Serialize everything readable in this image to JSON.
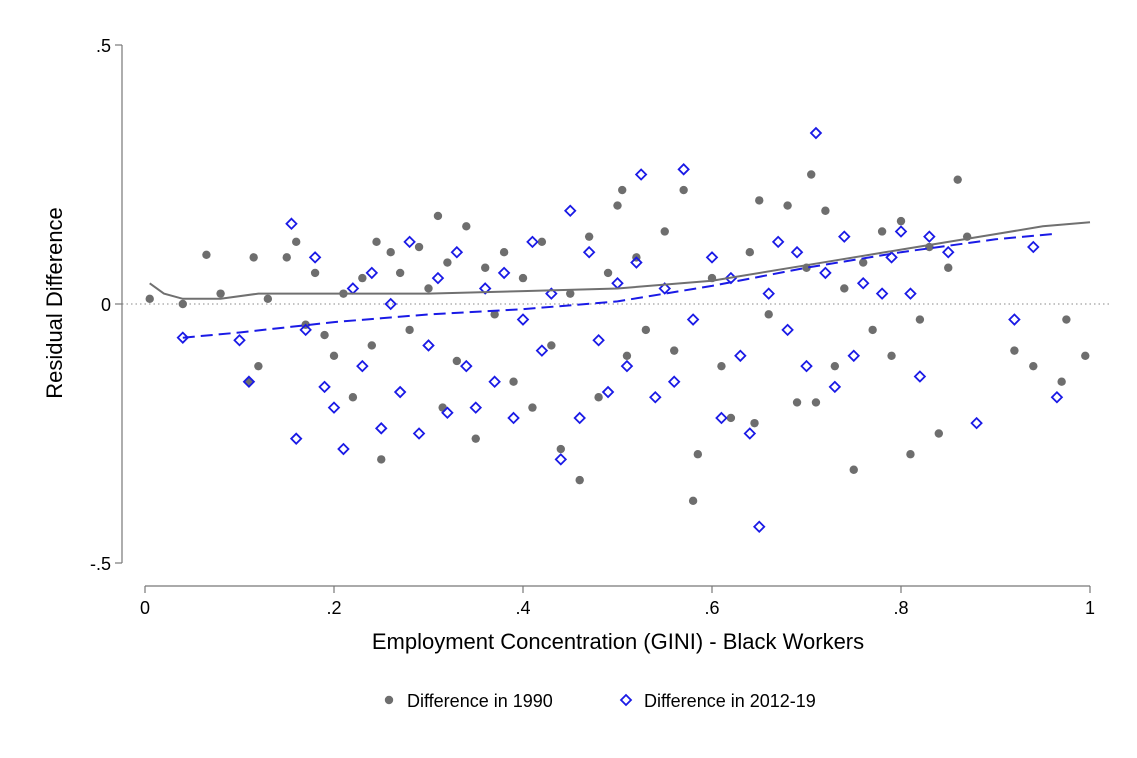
{
  "chart_data": {
    "type": "scatter",
    "xlabel": "Employment Concentration (GINI) - Black Workers",
    "ylabel": "Residual Difference",
    "xlim": [
      0,
      1
    ],
    "ylim": [
      -0.5,
      0.5
    ],
    "x_ticks": [
      {
        "value": 0,
        "label": "0"
      },
      {
        "value": 0.2,
        "label": ".2"
      },
      {
        "value": 0.4,
        "label": ".4"
      },
      {
        "value": 0.6,
        "label": ".6"
      },
      {
        "value": 0.8,
        "label": ".8"
      },
      {
        "value": 1,
        "label": "1"
      }
    ],
    "y_ticks": [
      {
        "value": 0.5,
        "label": ".5"
      },
      {
        "value": 0,
        "label": "0"
      },
      {
        "value": -0.5,
        "label": "-.5"
      }
    ],
    "reference_line": {
      "y": 0,
      "style": "dotted"
    },
    "grid": false,
    "legend_position": "bottom",
    "series": [
      {
        "name": "Difference in 1990",
        "marker": "filled-circle",
        "color": "#6e6e6e",
        "points": [
          [
            0.005,
            0.01
          ],
          [
            0.04,
            0.0
          ],
          [
            0.065,
            0.095
          ],
          [
            0.08,
            0.02
          ],
          [
            0.11,
            -0.15
          ],
          [
            0.115,
            0.09
          ],
          [
            0.12,
            -0.12
          ],
          [
            0.13,
            0.01
          ],
          [
            0.15,
            0.09
          ],
          [
            0.16,
            0.12
          ],
          [
            0.17,
            -0.04
          ],
          [
            0.18,
            0.06
          ],
          [
            0.19,
            -0.06
          ],
          [
            0.2,
            -0.1
          ],
          [
            0.21,
            0.02
          ],
          [
            0.22,
            -0.18
          ],
          [
            0.23,
            0.05
          ],
          [
            0.24,
            -0.08
          ],
          [
            0.245,
            0.12
          ],
          [
            0.25,
            -0.3
          ],
          [
            0.26,
            0.1
          ],
          [
            0.27,
            0.06
          ],
          [
            0.28,
            -0.05
          ],
          [
            0.29,
            0.11
          ],
          [
            0.3,
            0.03
          ],
          [
            0.31,
            0.17
          ],
          [
            0.315,
            -0.2
          ],
          [
            0.32,
            0.08
          ],
          [
            0.33,
            -0.11
          ],
          [
            0.34,
            0.15
          ],
          [
            0.35,
            -0.26
          ],
          [
            0.36,
            0.07
          ],
          [
            0.37,
            -0.02
          ],
          [
            0.38,
            0.1
          ],
          [
            0.39,
            -0.15
          ],
          [
            0.4,
            0.05
          ],
          [
            0.41,
            -0.2
          ],
          [
            0.42,
            0.12
          ],
          [
            0.43,
            -0.08
          ],
          [
            0.44,
            -0.28
          ],
          [
            0.45,
            0.02
          ],
          [
            0.46,
            -0.34
          ],
          [
            0.47,
            0.13
          ],
          [
            0.48,
            -0.18
          ],
          [
            0.49,
            0.06
          ],
          [
            0.5,
            0.19
          ],
          [
            0.505,
            0.22
          ],
          [
            0.51,
            -0.1
          ],
          [
            0.52,
            0.09
          ],
          [
            0.53,
            -0.05
          ],
          [
            0.55,
            0.14
          ],
          [
            0.56,
            -0.09
          ],
          [
            0.57,
            0.22
          ],
          [
            0.58,
            -0.38
          ],
          [
            0.585,
            -0.29
          ],
          [
            0.6,
            0.05
          ],
          [
            0.61,
            -0.12
          ],
          [
            0.62,
            -0.22
          ],
          [
            0.64,
            0.1
          ],
          [
            0.645,
            -0.23
          ],
          [
            0.65,
            0.2
          ],
          [
            0.66,
            -0.02
          ],
          [
            0.68,
            0.19
          ],
          [
            0.69,
            -0.19
          ],
          [
            0.7,
            0.07
          ],
          [
            0.705,
            0.25
          ],
          [
            0.71,
            -0.19
          ],
          [
            0.72,
            0.18
          ],
          [
            0.73,
            -0.12
          ],
          [
            0.74,
            0.03
          ],
          [
            0.75,
            -0.32
          ],
          [
            0.76,
            0.08
          ],
          [
            0.77,
            -0.05
          ],
          [
            0.78,
            0.14
          ],
          [
            0.79,
            -0.1
          ],
          [
            0.8,
            0.16
          ],
          [
            0.81,
            -0.29
          ],
          [
            0.82,
            -0.03
          ],
          [
            0.83,
            0.11
          ],
          [
            0.84,
            -0.25
          ],
          [
            0.85,
            0.07
          ],
          [
            0.86,
            0.24
          ],
          [
            0.87,
            0.13
          ],
          [
            0.92,
            -0.09
          ],
          [
            0.94,
            -0.12
          ],
          [
            0.97,
            -0.15
          ],
          [
            0.975,
            -0.03
          ],
          [
            0.995,
            -0.1
          ]
        ]
      },
      {
        "name": "Difference in 2012-19",
        "marker": "hollow-diamond",
        "color": "#1a1ae6",
        "points": [
          [
            0.04,
            -0.065
          ],
          [
            0.1,
            -0.07
          ],
          [
            0.11,
            -0.15
          ],
          [
            0.155,
            0.155
          ],
          [
            0.16,
            -0.26
          ],
          [
            0.17,
            -0.05
          ],
          [
            0.18,
            0.09
          ],
          [
            0.19,
            -0.16
          ],
          [
            0.2,
            -0.2
          ],
          [
            0.21,
            -0.28
          ],
          [
            0.22,
            0.03
          ],
          [
            0.23,
            -0.12
          ],
          [
            0.24,
            0.06
          ],
          [
            0.25,
            -0.24
          ],
          [
            0.26,
            0.0
          ],
          [
            0.27,
            -0.17
          ],
          [
            0.28,
            0.12
          ],
          [
            0.29,
            -0.25
          ],
          [
            0.3,
            -0.08
          ],
          [
            0.31,
            0.05
          ],
          [
            0.32,
            -0.21
          ],
          [
            0.33,
            0.1
          ],
          [
            0.34,
            -0.12
          ],
          [
            0.35,
            -0.2
          ],
          [
            0.36,
            0.03
          ],
          [
            0.37,
            -0.15
          ],
          [
            0.38,
            0.06
          ],
          [
            0.39,
            -0.22
          ],
          [
            0.4,
            -0.03
          ],
          [
            0.41,
            0.12
          ],
          [
            0.42,
            -0.09
          ],
          [
            0.43,
            0.02
          ],
          [
            0.44,
            -0.3
          ],
          [
            0.45,
            0.18
          ],
          [
            0.46,
            -0.22
          ],
          [
            0.47,
            0.1
          ],
          [
            0.48,
            -0.07
          ],
          [
            0.49,
            -0.17
          ],
          [
            0.5,
            0.04
          ],
          [
            0.51,
            -0.12
          ],
          [
            0.52,
            0.08
          ],
          [
            0.525,
            0.25
          ],
          [
            0.54,
            -0.18
          ],
          [
            0.55,
            0.03
          ],
          [
            0.56,
            -0.15
          ],
          [
            0.57,
            0.26
          ],
          [
            0.58,
            -0.03
          ],
          [
            0.6,
            0.09
          ],
          [
            0.61,
            -0.22
          ],
          [
            0.62,
            0.05
          ],
          [
            0.63,
            -0.1
          ],
          [
            0.64,
            -0.25
          ],
          [
            0.65,
            -0.43
          ],
          [
            0.66,
            0.02
          ],
          [
            0.67,
            0.12
          ],
          [
            0.68,
            -0.05
          ],
          [
            0.69,
            0.1
          ],
          [
            0.7,
            -0.12
          ],
          [
            0.71,
            0.33
          ],
          [
            0.72,
            0.06
          ],
          [
            0.73,
            -0.16
          ],
          [
            0.74,
            0.13
          ],
          [
            0.75,
            -0.1
          ],
          [
            0.76,
            0.04
          ],
          [
            0.78,
            0.02
          ],
          [
            0.79,
            0.09
          ],
          [
            0.8,
            0.14
          ],
          [
            0.81,
            0.02
          ],
          [
            0.82,
            -0.14
          ],
          [
            0.83,
            0.13
          ],
          [
            0.85,
            0.1
          ],
          [
            0.88,
            -0.23
          ],
          [
            0.92,
            -0.03
          ],
          [
            0.94,
            0.11
          ],
          [
            0.965,
            -0.18
          ]
        ]
      }
    ],
    "fits": [
      {
        "series": "Difference in 1990",
        "style": "solid",
        "color": "#707070",
        "points": [
          [
            0.005,
            0.04
          ],
          [
            0.02,
            0.02
          ],
          [
            0.04,
            0.01
          ],
          [
            0.08,
            0.01
          ],
          [
            0.12,
            0.02
          ],
          [
            0.2,
            0.02
          ],
          [
            0.3,
            0.02
          ],
          [
            0.4,
            0.025
          ],
          [
            0.5,
            0.03
          ],
          [
            0.6,
            0.045
          ],
          [
            0.7,
            0.075
          ],
          [
            0.8,
            0.105
          ],
          [
            0.9,
            0.135
          ],
          [
            0.95,
            0.15
          ],
          [
            1.0,
            0.158
          ]
        ]
      },
      {
        "series": "Difference in 2012-19",
        "style": "dashed",
        "color": "#1a1ae6",
        "points": [
          [
            0.04,
            -0.065
          ],
          [
            0.1,
            -0.055
          ],
          [
            0.2,
            -0.035
          ],
          [
            0.3,
            -0.02
          ],
          [
            0.4,
            -0.01
          ],
          [
            0.5,
            0.005
          ],
          [
            0.6,
            0.035
          ],
          [
            0.7,
            0.07
          ],
          [
            0.8,
            0.1
          ],
          [
            0.9,
            0.125
          ],
          [
            0.96,
            0.135
          ]
        ]
      }
    ]
  }
}
